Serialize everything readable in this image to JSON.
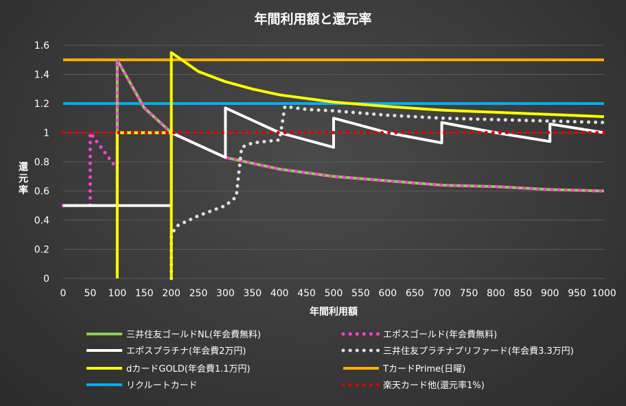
{
  "chart_data": {
    "type": "line",
    "title": "年間利用額と還元率",
    "xlabel": "年間利用額",
    "ylabel": "還元率",
    "xlim": [
      0,
      1000
    ],
    "ylim": [
      0,
      1.6
    ],
    "x_ticks": [
      "0",
      "50",
      "100",
      "150",
      "200",
      "250",
      "300",
      "350",
      "400",
      "450",
      "500",
      "550",
      "600",
      "650",
      "700",
      "750",
      "800",
      "850",
      "900",
      "950",
      "1000"
    ],
    "y_ticks": [
      "0",
      "0.2",
      "0.4",
      "0.6",
      "0.8",
      "1",
      "1.2",
      "1.4",
      "1.6"
    ],
    "grid": "horizontal",
    "legend_position": "bottom",
    "series": [
      {
        "name": "三井住友ゴールドNL(年会費無料)",
        "color": "#92d050",
        "style": "solid",
        "x": [
          0,
          100,
          100,
          150,
          200,
          300,
          400,
          500,
          600,
          700,
          800,
          900,
          1000
        ],
        "y": [
          0.5,
          0.5,
          1.5,
          1.17,
          1.0,
          0.83,
          0.75,
          0.7,
          0.67,
          0.64,
          0.63,
          0.61,
          0.6
        ]
      },
      {
        "name": "エポスゴールド(年会費無料)",
        "color": "#ff3fd0",
        "style": "dotted",
        "x": [
          0,
          50,
          50,
          100,
          100,
          150,
          200,
          300,
          400,
          500,
          600,
          700,
          800,
          900,
          1000
        ],
        "y": [
          0.5,
          0.5,
          1.0,
          0.75,
          1.5,
          1.17,
          1.0,
          0.83,
          0.75,
          0.7,
          0.67,
          0.64,
          0.63,
          0.61,
          0.6
        ]
      },
      {
        "name": "エポスプラチナ(年会費2万円)",
        "color": "#ffffff",
        "style": "solid",
        "x": [
          0,
          200,
          200,
          300,
          300,
          400,
          500,
          500,
          600,
          700,
          700,
          800,
          900,
          900,
          1000
        ],
        "y": [
          0.5,
          0.5,
          1.0,
          0.83,
          1.17,
          1.0,
          0.9,
          1.1,
          1.0,
          0.93,
          1.07,
          1.0,
          0.94,
          1.06,
          1.0
        ]
      },
      {
        "name": "三井住友プラチナプリファード(年会費3.3万円)",
        "color": "#e0e0e0",
        "style": "dotted",
        "x": [
          200,
          200,
          210,
          250,
          300,
          320,
          330,
          350,
          400,
          410,
          450,
          500,
          600,
          700,
          800,
          900,
          1000
        ],
        "y": [
          0,
          0.3,
          0.36,
          0.43,
          0.5,
          0.56,
          0.9,
          0.93,
          0.95,
          1.18,
          1.16,
          1.15,
          1.12,
          1.1,
          1.09,
          1.08,
          1.07
        ]
      },
      {
        "name": "dカードGOLD(年会費1.1万円)",
        "color": "#ffff00",
        "style": "solid",
        "x": [
          100,
          100,
          200,
          200,
          200,
          250,
          300,
          350,
          400,
          500,
          600,
          700,
          800,
          900,
          1000
        ],
        "y": [
          0,
          1.0,
          1.0,
          0,
          1.55,
          1.42,
          1.35,
          1.3,
          1.26,
          1.21,
          1.18,
          1.155,
          1.14,
          1.125,
          1.11
        ]
      },
      {
        "name": "TカードPrime(日曜)",
        "color": "#ffb000",
        "style": "solid",
        "x": [
          0,
          1000
        ],
        "y": [
          1.5,
          1.5
        ]
      },
      {
        "name": "リクルートカード",
        "color": "#00b0f0",
        "style": "solid",
        "x": [
          0,
          1000
        ],
        "y": [
          1.2,
          1.2
        ]
      },
      {
        "name": "楽天カード他(還元率1%)",
        "color": "#e00000",
        "style": "dotted",
        "x": [
          0,
          1000
        ],
        "y": [
          1.0,
          1.0
        ]
      }
    ]
  }
}
